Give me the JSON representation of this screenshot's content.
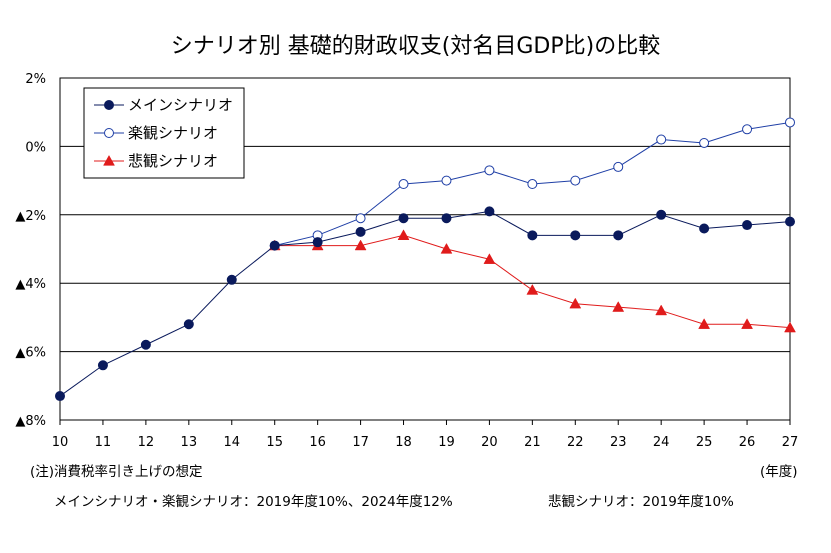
{
  "title": "シナリオ別 基礎的財政収支(対名目GDP比)の比較",
  "x_unit": "(年度)",
  "notes": {
    "line1": "(注)消費税率引き上げの想定",
    "line2": "メインシナリオ・楽観シナリオ：2019年度10%、2024年度12%",
    "line3": "悲観シナリオ：2019年度10%"
  },
  "colors": {
    "main": "#0a1a5c",
    "optimistic": "#1f3fa6",
    "pessimistic": "#e01b1b",
    "grid": "#000000"
  },
  "chart_data": {
    "type": "line",
    "title": "シナリオ別 基礎的財政収支(対名目GDP比)の比較",
    "xlabel": "(年度)",
    "ylabel": "",
    "ylim": [
      -8,
      2
    ],
    "xlim": [
      10,
      27
    ],
    "grid": true,
    "legend_position": "top-left",
    "x_ticks": [
      10,
      11,
      12,
      13,
      14,
      15,
      16,
      17,
      18,
      19,
      20,
      21,
      22,
      23,
      24,
      25,
      26,
      27
    ],
    "x_tick_labels": [
      "10",
      "11",
      "12",
      "13",
      "14",
      "15",
      "16",
      "17",
      "18",
      "19",
      "20",
      "21",
      "22",
      "23",
      "24",
      "25",
      "26",
      "27"
    ],
    "y_ticks": [
      2,
      0,
      -2,
      -4,
      -6,
      -8
    ],
    "y_tick_labels": [
      "2%",
      "0%",
      "▲2%",
      "▲4%",
      "▲6%",
      "▲8%"
    ],
    "series": [
      {
        "name": "メインシナリオ",
        "marker": "filled-circle",
        "x": [
          10,
          11,
          12,
          13,
          14,
          15,
          16,
          17,
          18,
          19,
          20,
          21,
          22,
          23,
          24,
          25,
          26,
          27
        ],
        "values": [
          -7.3,
          -6.4,
          -5.8,
          -5.2,
          -3.9,
          -2.9,
          -2.8,
          -2.5,
          -2.1,
          -2.1,
          -1.9,
          -2.6,
          -2.6,
          -2.6,
          -2.0,
          -2.4,
          -2.3,
          -2.2
        ]
      },
      {
        "name": "楽観シナリオ",
        "marker": "open-circle",
        "x": [
          15,
          16,
          17,
          18,
          19,
          20,
          21,
          22,
          23,
          24,
          25,
          26,
          27
        ],
        "values": [
          -2.9,
          -2.6,
          -2.1,
          -1.1,
          -1.0,
          -0.7,
          -1.1,
          -1.0,
          -0.6,
          0.2,
          0.1,
          0.5,
          0.7
        ]
      },
      {
        "name": "悲観シナリオ",
        "marker": "filled-triangle",
        "x": [
          15,
          16,
          17,
          18,
          19,
          20,
          21,
          22,
          23,
          24,
          25,
          26,
          27
        ],
        "values": [
          -2.9,
          -2.9,
          -2.9,
          -2.6,
          -3.0,
          -3.3,
          -4.2,
          -4.6,
          -4.7,
          -4.8,
          -5.2,
          -5.2,
          -5.3
        ]
      }
    ]
  }
}
